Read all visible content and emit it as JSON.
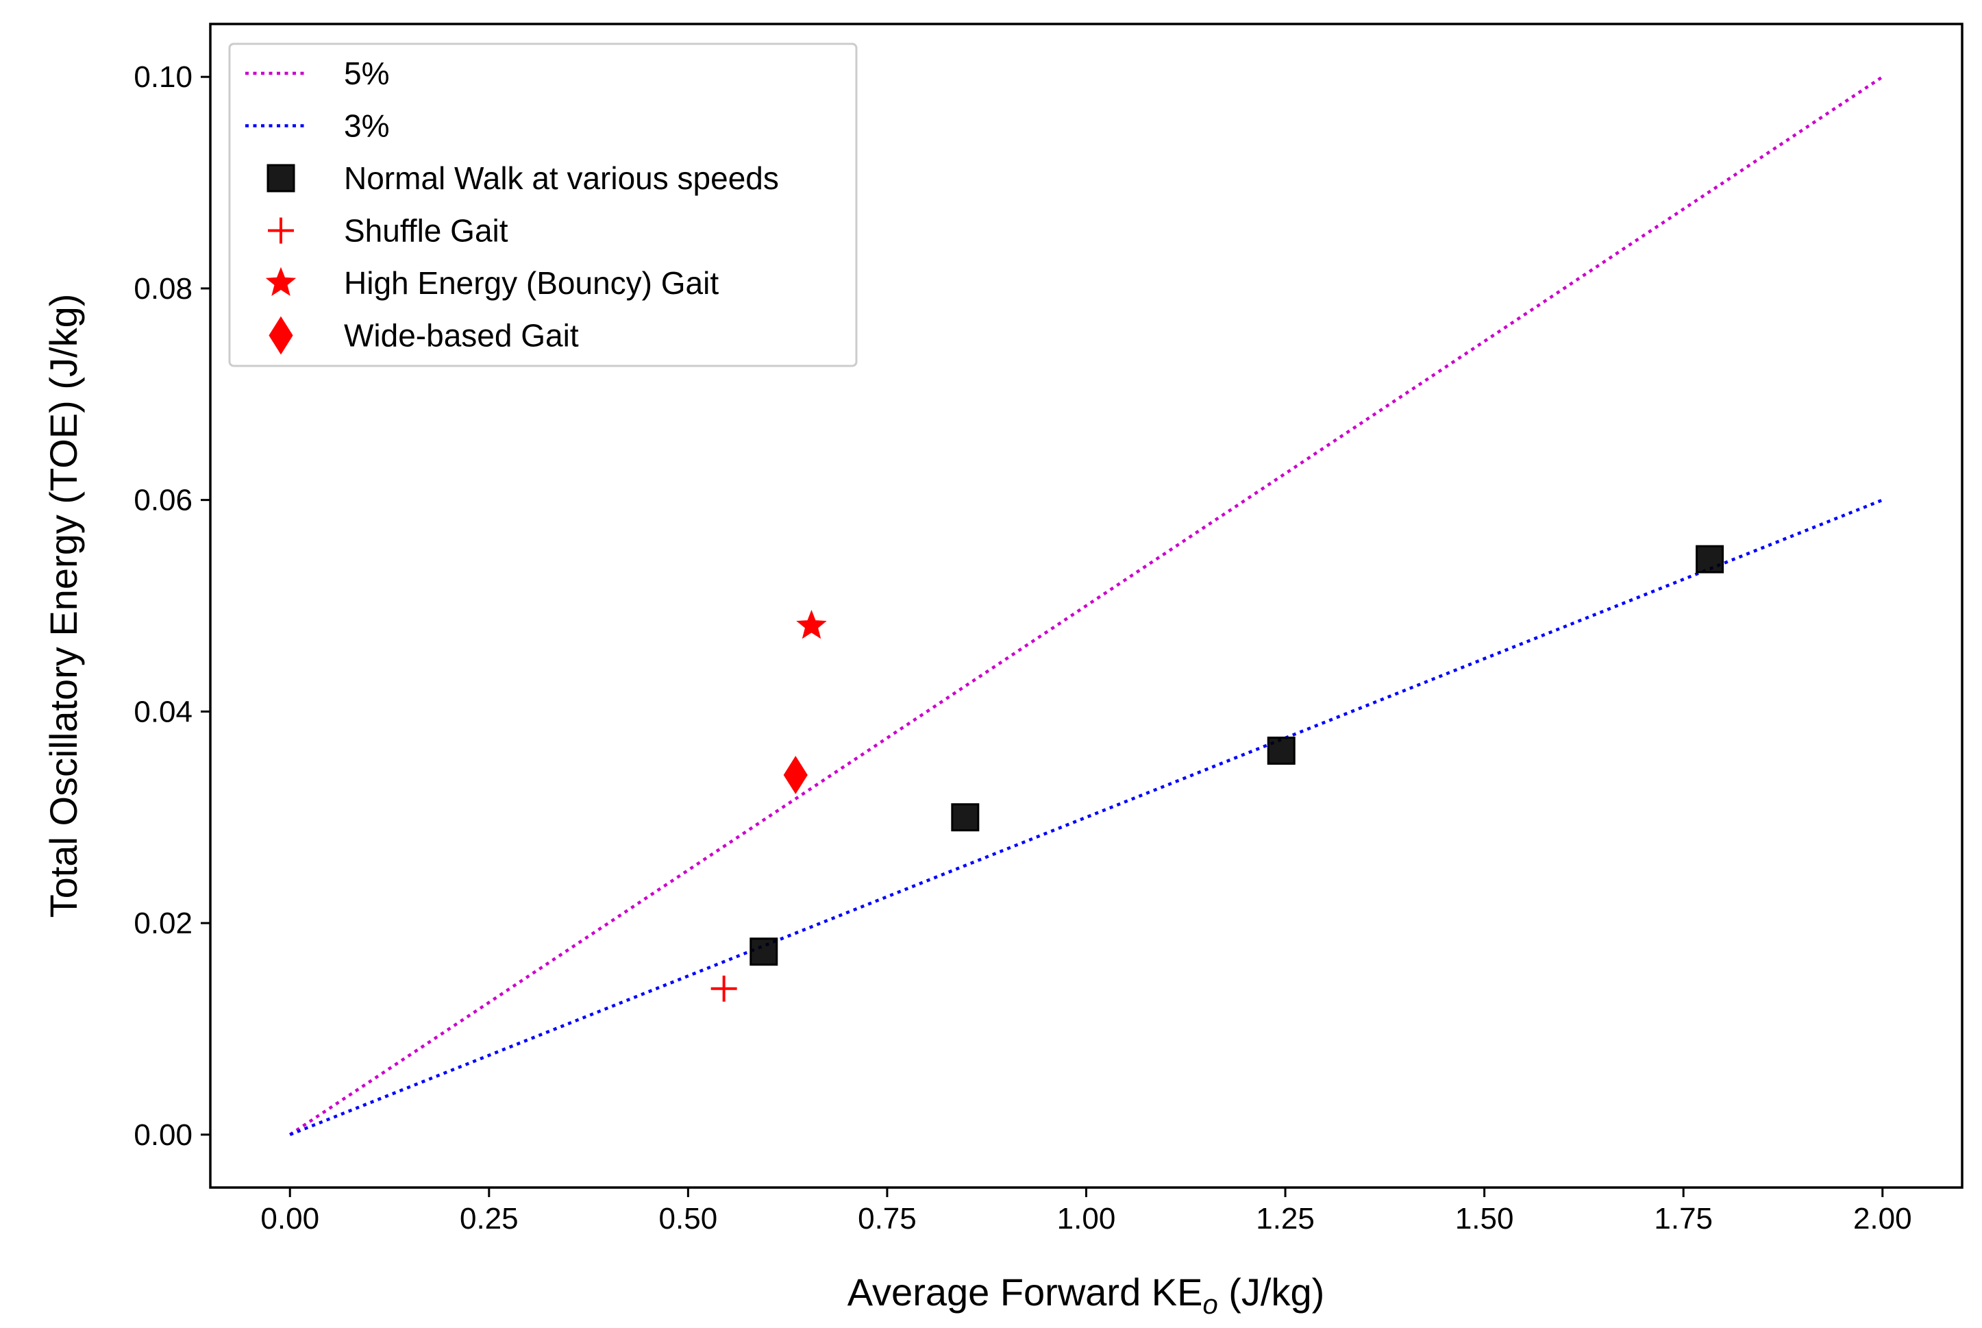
{
  "chart_data": {
    "type": "scatter",
    "title": "",
    "xlabel": "Average Forward KE",
    "xlabel_sub": "o",
    "xlabel_unit": " (J/kg)",
    "ylabel": "Total Oscillatory Energy (TOE) (J/kg)",
    "xlim": [
      -0.1,
      2.1
    ],
    "ylim": [
      -0.005,
      0.105
    ],
    "x_ticks": [
      0.0,
      0.25,
      0.5,
      0.75,
      1.0,
      1.25,
      1.5,
      1.75,
      2.0
    ],
    "x_tick_labels": [
      "0.00",
      "0.25",
      "0.50",
      "0.75",
      "1.00",
      "1.25",
      "1.50",
      "1.75",
      "2.00"
    ],
    "y_ticks": [
      0.0,
      0.02,
      0.04,
      0.06,
      0.08,
      0.1
    ],
    "y_tick_labels": [
      "0.00",
      "0.02",
      "0.04",
      "0.06",
      "0.08",
      "0.10"
    ],
    "grid": false,
    "legend_position": "top-left",
    "series": [
      {
        "name": "5%",
        "kind": "line",
        "style": "dotted",
        "color": "#cc00cc",
        "x": [
          0.0,
          2.0
        ],
        "y": [
          0.0,
          0.1
        ]
      },
      {
        "name": "3%",
        "kind": "line",
        "style": "dotted",
        "color": "#0000ff",
        "x": [
          0.0,
          2.0
        ],
        "y": [
          0.0,
          0.06
        ]
      },
      {
        "name": "Normal Walk at various speeds",
        "kind": "scatter",
        "marker": "square",
        "color": "#000000",
        "x": [
          0.595,
          0.848,
          1.245,
          1.783
        ],
        "y": [
          0.0173,
          0.03,
          0.0363,
          0.0544
        ]
      },
      {
        "name": "Shuffle Gait",
        "kind": "scatter",
        "marker": "plus",
        "color": "#ff0000",
        "x": [
          0.545
        ],
        "y": [
          0.0138
        ]
      },
      {
        "name": "High Energy (Bouncy) Gait",
        "kind": "scatter",
        "marker": "star",
        "color": "#ff0000",
        "x": [
          0.655
        ],
        "y": [
          0.0481
        ]
      },
      {
        "name": "Wide-based Gait",
        "kind": "scatter",
        "marker": "diamond",
        "color": "#ff0000",
        "x": [
          0.635
        ],
        "y": [
          0.034
        ]
      }
    ]
  }
}
